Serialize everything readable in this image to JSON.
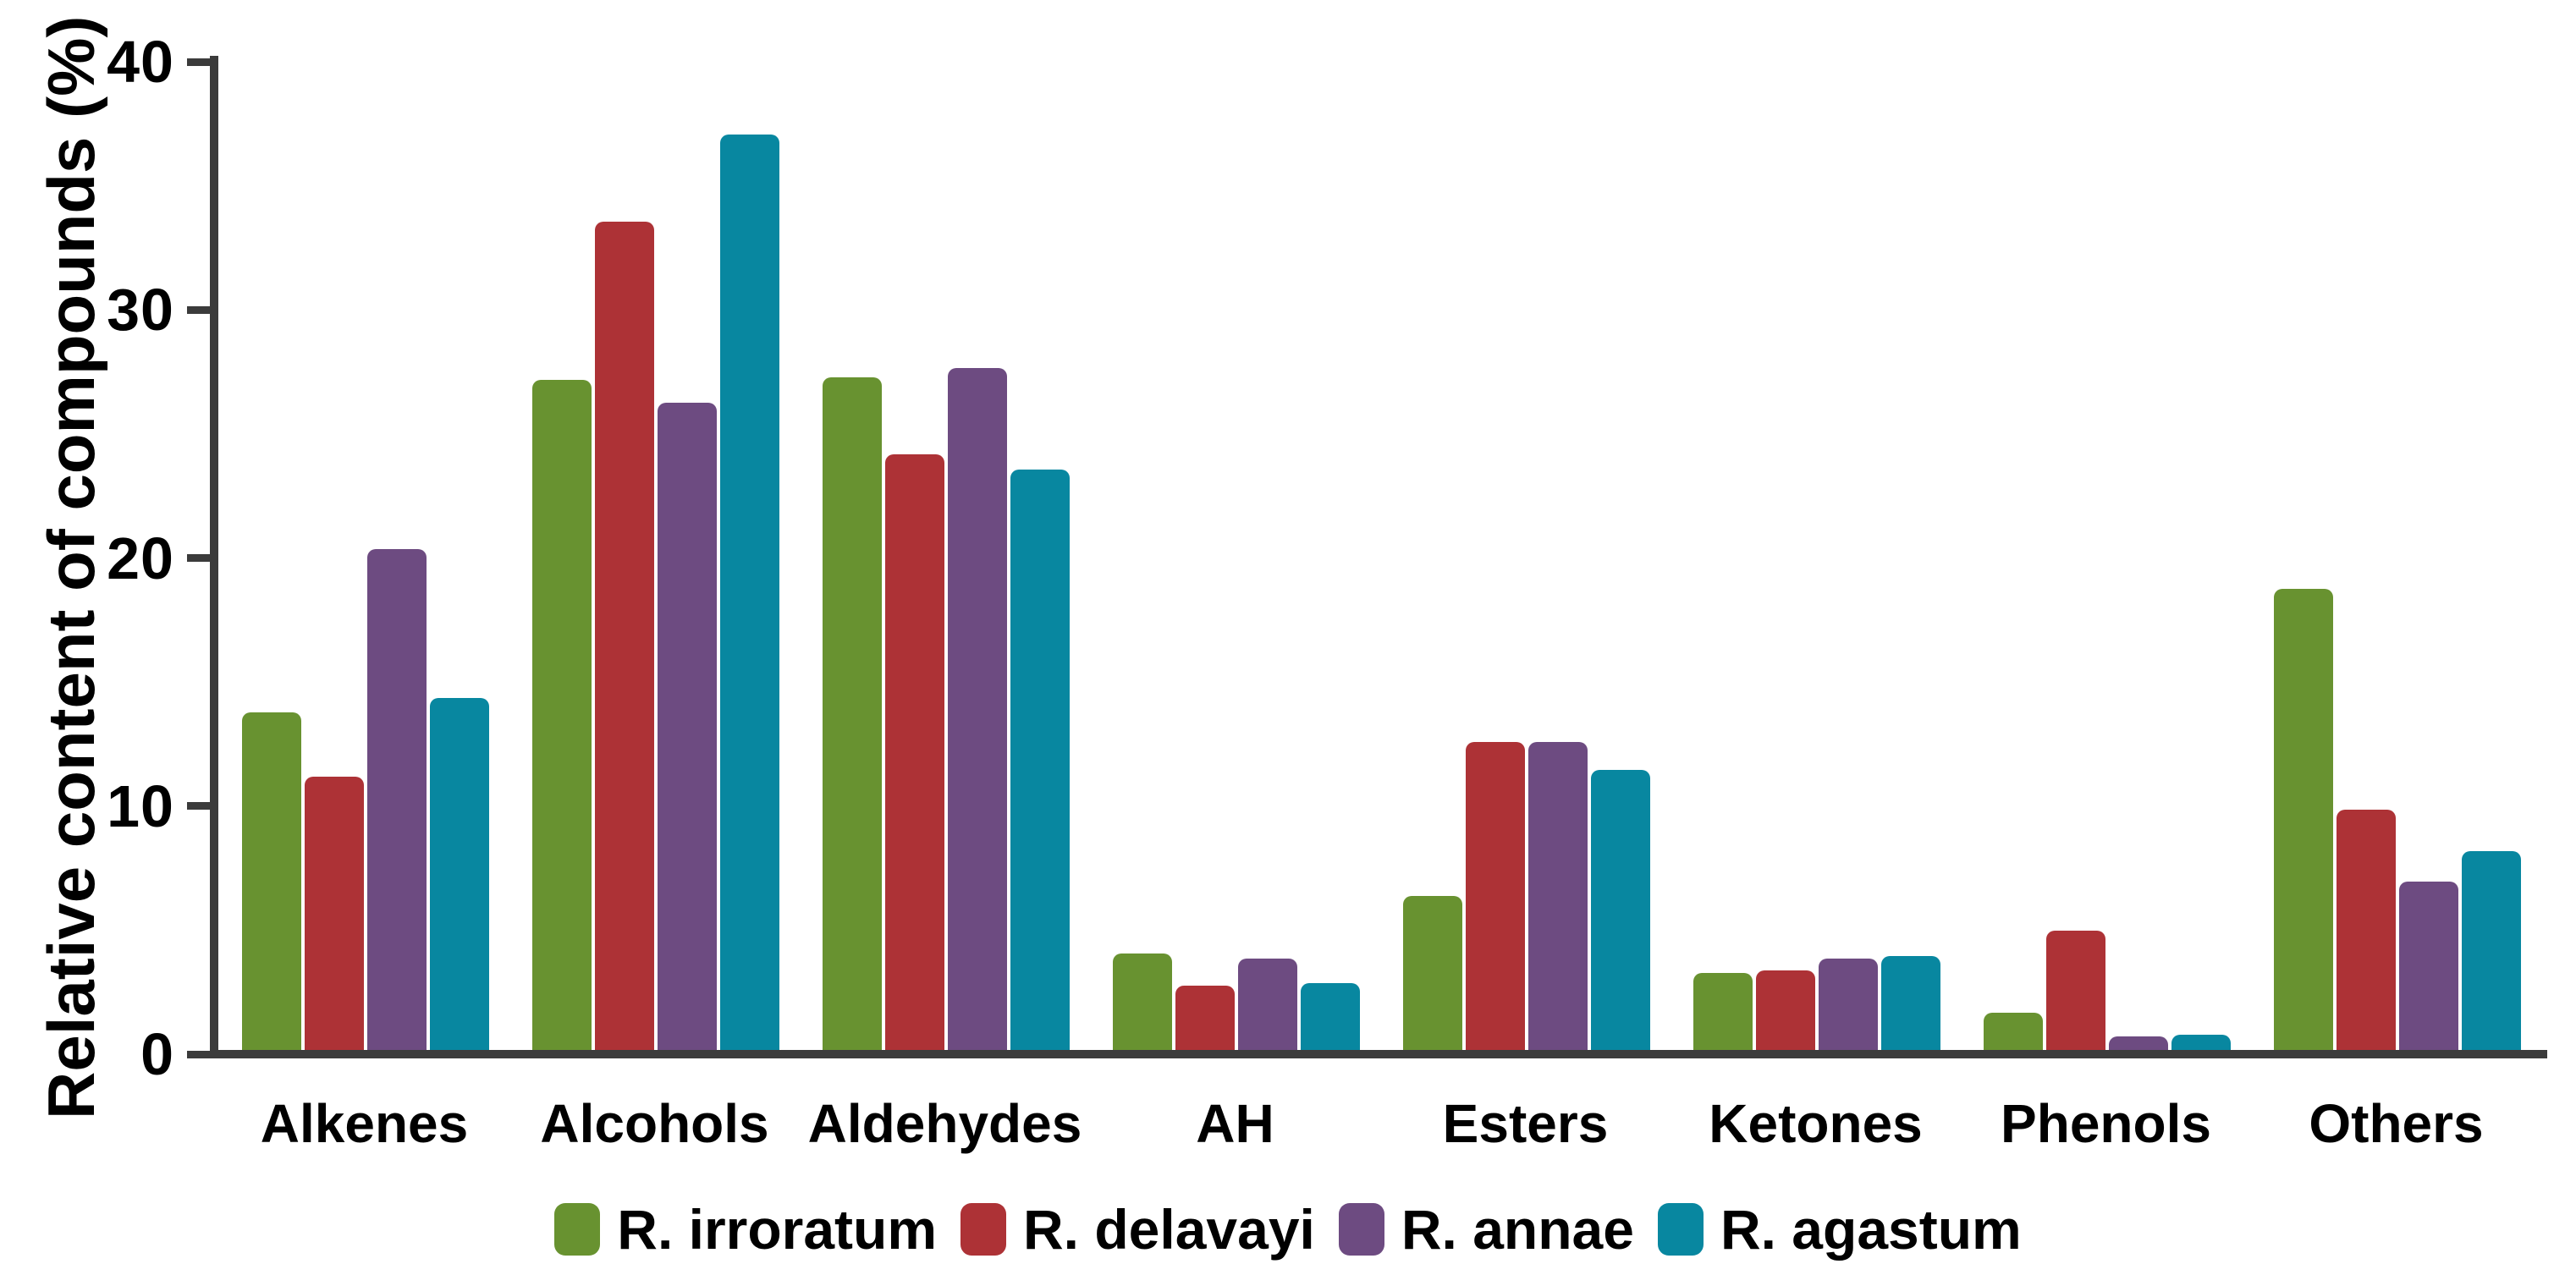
{
  "chart_data": {
    "type": "bar",
    "title": "",
    "xlabel": "",
    "ylabel": "Relative content of compounds (%)",
    "ylim": [
      0,
      40
    ],
    "yticks": [
      0,
      10,
      20,
      30,
      40
    ],
    "grid": false,
    "legend_position": "bottom",
    "categories": [
      "Alkenes",
      "Alcohols",
      "Aldehydes",
      "AH",
      "Esters",
      "Ketones",
      "Phenols",
      "Others"
    ],
    "series": [
      {
        "name": "R. irroratum",
        "color": "#689230",
        "values": [
          13.6,
          27.0,
          27.1,
          3.9,
          6.2,
          3.1,
          1.5,
          18.6
        ]
      },
      {
        "name": "R. delavayi",
        "color": "#AD3236",
        "values": [
          11.0,
          33.4,
          24.0,
          2.6,
          12.4,
          3.2,
          4.8,
          9.7
        ]
      },
      {
        "name": "R. annae",
        "color": "#6D4B81",
        "values": [
          20.2,
          26.1,
          27.5,
          3.7,
          12.4,
          3.7,
          0.55,
          6.8
        ]
      },
      {
        "name": "R. agastum",
        "color": "#0887A0",
        "values": [
          14.2,
          36.9,
          23.4,
          2.7,
          11.3,
          3.8,
          0.6,
          8.0
        ]
      }
    ]
  },
  "colors": {
    "axis": "#3B3B3B",
    "text": "#000000",
    "background": "#FFFFFF"
  }
}
